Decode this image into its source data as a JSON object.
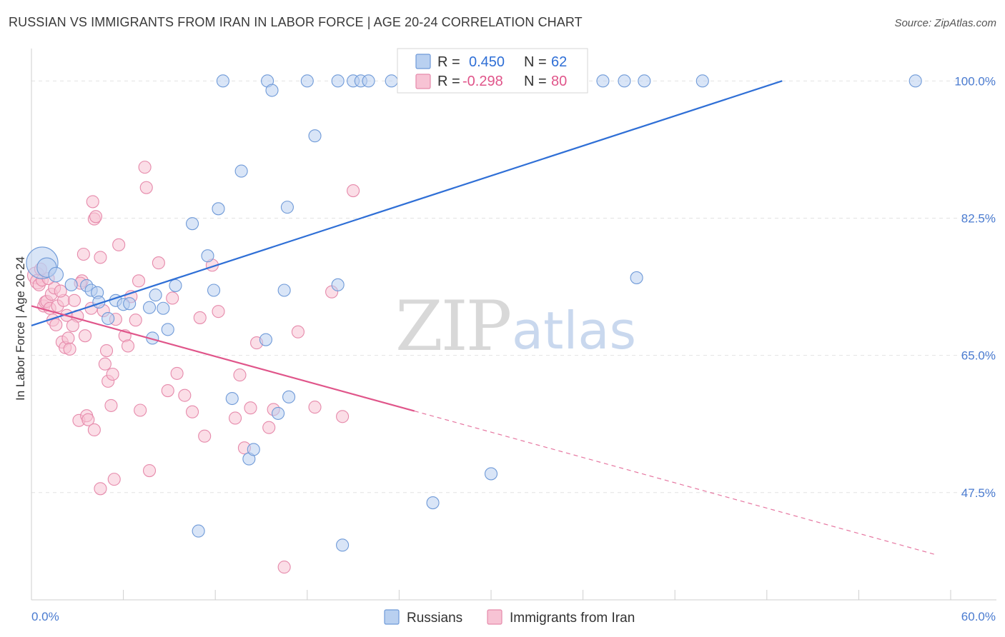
{
  "title": "RUSSIAN VS IMMIGRANTS FROM IRAN IN LABOR FORCE | AGE 20-24 CORRELATION CHART",
  "source": "Source: ZipAtlas.com",
  "watermark": {
    "zip": "ZIP",
    "atlas": "atlas"
  },
  "colors": {
    "blue_fill": "#b9d0f0",
    "blue_stroke": "#6f9ad8",
    "blue_line": "#2f6fd6",
    "pink_fill": "#f7c3d4",
    "pink_stroke": "#e68aab",
    "pink_line": "#e0558a",
    "grid": "#e3e3e3",
    "tick_text": "#4a7bd0"
  },
  "legend_box": {
    "rows": [
      {
        "r_label": "R =",
        "r_value": "0.450",
        "n_label": "N =",
        "n_value": "62"
      },
      {
        "r_label": "R =",
        "r_value": "-0.298",
        "n_label": "N =",
        "n_value": "80"
      }
    ]
  },
  "bottom_legend": {
    "series1": "Russians",
    "series2": "Immigrants from Iran"
  },
  "chart_data": {
    "type": "scatter",
    "title": "RUSSIAN VS IMMIGRANTS FROM IRAN IN LABOR FORCE | AGE 20-24 CORRELATION CHART",
    "ylabel": "In Labor Force | Age 20-24",
    "xlabel": "",
    "xlim": [
      0,
      60
    ],
    "ylim": [
      33,
      101
    ],
    "x_tick_labels": [
      "0.0%",
      "60.0%"
    ],
    "y_ticks": [
      47.5,
      65.0,
      82.5,
      100.0
    ],
    "y_tick_labels": [
      "47.5%",
      "65.0%",
      "82.5%",
      "100.0%"
    ],
    "grid": true,
    "legend_position": "top-center",
    "series": [
      {
        "name": "Russians",
        "r": 0.45,
        "n": 62,
        "trend": {
          "x0": 0,
          "y0": 68.8,
          "x1": 49,
          "y1": 100.0,
          "dashed_extension": false
        },
        "points": [
          [
            0.7,
            76.8,
            26
          ],
          [
            1.0,
            76.2,
            16
          ],
          [
            1.6,
            75.3,
            12
          ],
          [
            2.6,
            74.0,
            10
          ],
          [
            3.6,
            73.9,
            10
          ],
          [
            3.9,
            73.3,
            10
          ],
          [
            4.3,
            73.0,
            10
          ],
          [
            4.4,
            71.8,
            10
          ],
          [
            5.0,
            69.7,
            10
          ],
          [
            5.5,
            72.0,
            10
          ],
          [
            6.0,
            71.5,
            10
          ],
          [
            6.4,
            71.6,
            10
          ],
          [
            7.7,
            71.1,
            10
          ],
          [
            7.9,
            67.2,
            10
          ],
          [
            8.1,
            72.7,
            10
          ],
          [
            8.6,
            71.0,
            10
          ],
          [
            8.9,
            68.3,
            10
          ],
          [
            9.4,
            73.9,
            10
          ],
          [
            10.5,
            81.8,
            10
          ],
          [
            11.5,
            77.7,
            10
          ],
          [
            11.9,
            73.3,
            10
          ],
          [
            12.2,
            83.7,
            10
          ],
          [
            13.1,
            59.5,
            10
          ],
          [
            13.7,
            88.5,
            10
          ],
          [
            14.2,
            51.8,
            10
          ],
          [
            14.5,
            53.0,
            10
          ],
          [
            15.3,
            67.0,
            10
          ],
          [
            16.1,
            57.6,
            10
          ],
          [
            16.8,
            59.7,
            10
          ],
          [
            16.5,
            73.3,
            10
          ],
          [
            16.7,
            83.9,
            10
          ],
          [
            18.5,
            93.0,
            10
          ],
          [
            20.0,
            74.0,
            10
          ],
          [
            20.3,
            40.8,
            10
          ],
          [
            12.5,
            100.0,
            10
          ],
          [
            15.4,
            100.0,
            10
          ],
          [
            15.7,
            98.8,
            10
          ],
          [
            18.0,
            100.0,
            10
          ],
          [
            20.0,
            100.0,
            10
          ],
          [
            21.0,
            100.0,
            10
          ],
          [
            21.5,
            100.0,
            10
          ],
          [
            22.0,
            100.0,
            10
          ],
          [
            23.5,
            100.0,
            10
          ],
          [
            24.5,
            100.0,
            10
          ],
          [
            25.0,
            100.0,
            10
          ],
          [
            25.5,
            100.0,
            10
          ],
          [
            26.0,
            100.0,
            10
          ],
          [
            28.0,
            100.0,
            10
          ],
          [
            29.0,
            100.0,
            10
          ],
          [
            30.0,
            100.0,
            10
          ],
          [
            31.0,
            100.0,
            10
          ],
          [
            32.0,
            100.0,
            10
          ],
          [
            33.0,
            100.0,
            10
          ],
          [
            37.3,
            100.0,
            10
          ],
          [
            38.7,
            100.0,
            10
          ],
          [
            40.0,
            100.0,
            10
          ],
          [
            43.8,
            100.0,
            10
          ],
          [
            57.7,
            100.0,
            10
          ],
          [
            39.5,
            74.9,
            10
          ],
          [
            30.0,
            49.9,
            10
          ],
          [
            26.2,
            46.2,
            10
          ],
          [
            10.9,
            42.6,
            10
          ]
        ]
      },
      {
        "name": "Immigrants from Iran",
        "r": -0.298,
        "n": 80,
        "trend": {
          "x0": 0,
          "y0": 71.3,
          "x1": 25,
          "y1": 57.9,
          "dashed_x1": 59,
          "dashed_y1": 39.6
        },
        "points": [
          [
            0.3,
            75.2,
            14
          ],
          [
            0.4,
            74.4,
            12
          ],
          [
            0.5,
            74.0,
            10
          ],
          [
            0.7,
            74.6,
            10
          ],
          [
            0.8,
            71.3,
            10
          ],
          [
            0.9,
            71.8,
            10
          ],
          [
            1.0,
            71.9,
            10
          ],
          [
            1.2,
            71.0,
            10
          ],
          [
            1.3,
            72.8,
            10
          ],
          [
            1.4,
            69.5,
            10
          ],
          [
            1.5,
            73.6,
            10
          ],
          [
            1.6,
            68.9,
            10
          ],
          [
            1.7,
            71.3,
            10
          ],
          [
            2.0,
            66.7,
            10
          ],
          [
            2.1,
            72.0,
            10
          ],
          [
            2.2,
            66.0,
            10
          ],
          [
            2.3,
            70.1,
            10
          ],
          [
            2.4,
            67.2,
            10
          ],
          [
            2.5,
            65.8,
            10
          ],
          [
            2.8,
            72.0,
            10
          ],
          [
            3.0,
            70.0,
            10
          ],
          [
            3.1,
            56.7,
            10
          ],
          [
            3.3,
            74.5,
            10
          ],
          [
            3.4,
            77.9,
            10
          ],
          [
            3.5,
            67.5,
            10
          ],
          [
            3.6,
            57.3,
            10
          ],
          [
            3.7,
            56.8,
            10
          ],
          [
            3.9,
            71.0,
            10
          ],
          [
            4.1,
            55.5,
            10
          ],
          [
            4.0,
            84.6,
            10
          ],
          [
            4.1,
            82.4,
            10
          ],
          [
            4.2,
            82.7,
            10
          ],
          [
            4.5,
            77.5,
            10
          ],
          [
            4.7,
            70.7,
            10
          ],
          [
            4.8,
            63.9,
            10
          ],
          [
            4.9,
            65.6,
            10
          ],
          [
            5.0,
            61.7,
            10
          ],
          [
            5.2,
            58.6,
            10
          ],
          [
            5.3,
            62.6,
            10
          ],
          [
            5.4,
            49.2,
            10
          ],
          [
            5.5,
            69.6,
            10
          ],
          [
            5.7,
            79.1,
            10
          ],
          [
            4.5,
            48.0,
            10
          ],
          [
            6.1,
            67.5,
            10
          ],
          [
            6.3,
            66.2,
            10
          ],
          [
            6.5,
            72.5,
            10
          ],
          [
            7.0,
            74.5,
            10
          ],
          [
            7.1,
            58.0,
            10
          ],
          [
            7.4,
            89.0,
            10
          ],
          [
            7.5,
            86.4,
            10
          ],
          [
            7.7,
            50.3,
            10
          ],
          [
            8.3,
            76.8,
            10
          ],
          [
            8.9,
            60.5,
            10
          ],
          [
            9.2,
            72.3,
            10
          ],
          [
            9.5,
            62.7,
            10
          ],
          [
            10.0,
            59.9,
            10
          ],
          [
            10.5,
            57.8,
            10
          ],
          [
            11.0,
            69.8,
            10
          ],
          [
            11.3,
            54.7,
            10
          ],
          [
            11.8,
            76.5,
            10
          ],
          [
            12.2,
            70.6,
            10
          ],
          [
            13.3,
            57.0,
            10
          ],
          [
            13.6,
            62.5,
            10
          ],
          [
            13.9,
            53.2,
            10
          ],
          [
            14.3,
            58.3,
            10
          ],
          [
            14.7,
            66.6,
            10
          ],
          [
            15.5,
            55.8,
            10
          ],
          [
            15.8,
            58.1,
            10
          ],
          [
            16.5,
            38.0,
            10
          ],
          [
            17.4,
            68.0,
            10
          ],
          [
            18.5,
            58.4,
            10
          ],
          [
            19.6,
            73.1,
            10
          ],
          [
            20.3,
            57.2,
            10
          ],
          [
            21.0,
            86.0,
            10
          ],
          [
            0.6,
            76.0,
            10
          ],
          [
            1.1,
            74.8,
            10
          ],
          [
            1.9,
            73.2,
            10
          ],
          [
            2.7,
            68.8,
            10
          ],
          [
            3.2,
            74.2,
            10
          ],
          [
            6.8,
            69.5,
            10
          ]
        ]
      }
    ]
  }
}
